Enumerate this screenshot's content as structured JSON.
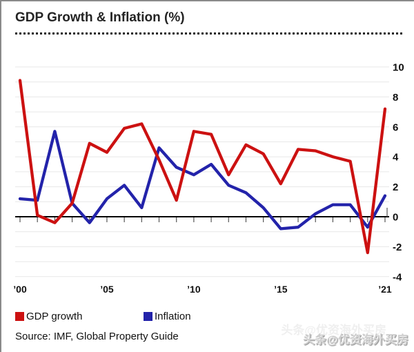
{
  "title": "GDP Growth & Inflation (%)",
  "source": "Source: IMF, Global Property Guide",
  "watermark": "头条@优资海外买房",
  "colors": {
    "gdp": "#cc1111",
    "inflation": "#2323aa",
    "gridline": "#e7e7e7",
    "axis": "#000000",
    "tick": "#555555",
    "text": "#111111"
  },
  "legend": [
    {
      "label": "GDP growth",
      "color": "#cc1111"
    },
    {
      "label": "Inflation",
      "color": "#2323aa"
    }
  ],
  "chart_data": {
    "type": "line",
    "title": "GDP Growth & Inflation (%)",
    "xlabel": "",
    "ylabel": "",
    "x": [
      2000,
      2001,
      2002,
      2003,
      2004,
      2005,
      2006,
      2007,
      2008,
      2009,
      2010,
      2011,
      2012,
      2013,
      2014,
      2015,
      2016,
      2017,
      2018,
      2019,
      2020,
      2021
    ],
    "series": [
      {
        "name": "GDP growth",
        "color": "#cc1111",
        "values": [
          9.1,
          0.1,
          -0.4,
          0.9,
          4.9,
          4.3,
          5.9,
          6.2,
          3.8,
          1.1,
          5.7,
          5.5,
          2.8,
          4.8,
          4.2,
          2.2,
          4.5,
          4.4,
          4.0,
          3.7,
          -2.4,
          7.2
        ]
      },
      {
        "name": "Inflation",
        "color": "#2323aa",
        "values": [
          1.2,
          1.1,
          5.7,
          0.9,
          -0.4,
          1.2,
          2.1,
          0.6,
          4.6,
          3.3,
          2.8,
          3.5,
          2.1,
          1.6,
          0.6,
          -0.8,
          -0.7,
          0.2,
          0.8,
          0.8,
          -0.7,
          1.4
        ]
      }
    ],
    "x_tick_labels": [
      "’00",
      "’05",
      "’10",
      "’15",
      "’21"
    ],
    "x_tick_years": [
      2000,
      2005,
      2010,
      2015,
      2021
    ],
    "y_tick_labels": [
      "10",
      "8",
      "6",
      "4",
      "2",
      "0",
      "-2",
      "-4"
    ],
    "y_ticks": [
      10,
      8,
      6,
      4,
      2,
      0,
      -2,
      -4
    ],
    "ylim": [
      -4.3,
      10.5
    ],
    "grid": "horizontal, every 1 unit",
    "zero_axis": true,
    "legend_position": "bottom-left"
  }
}
